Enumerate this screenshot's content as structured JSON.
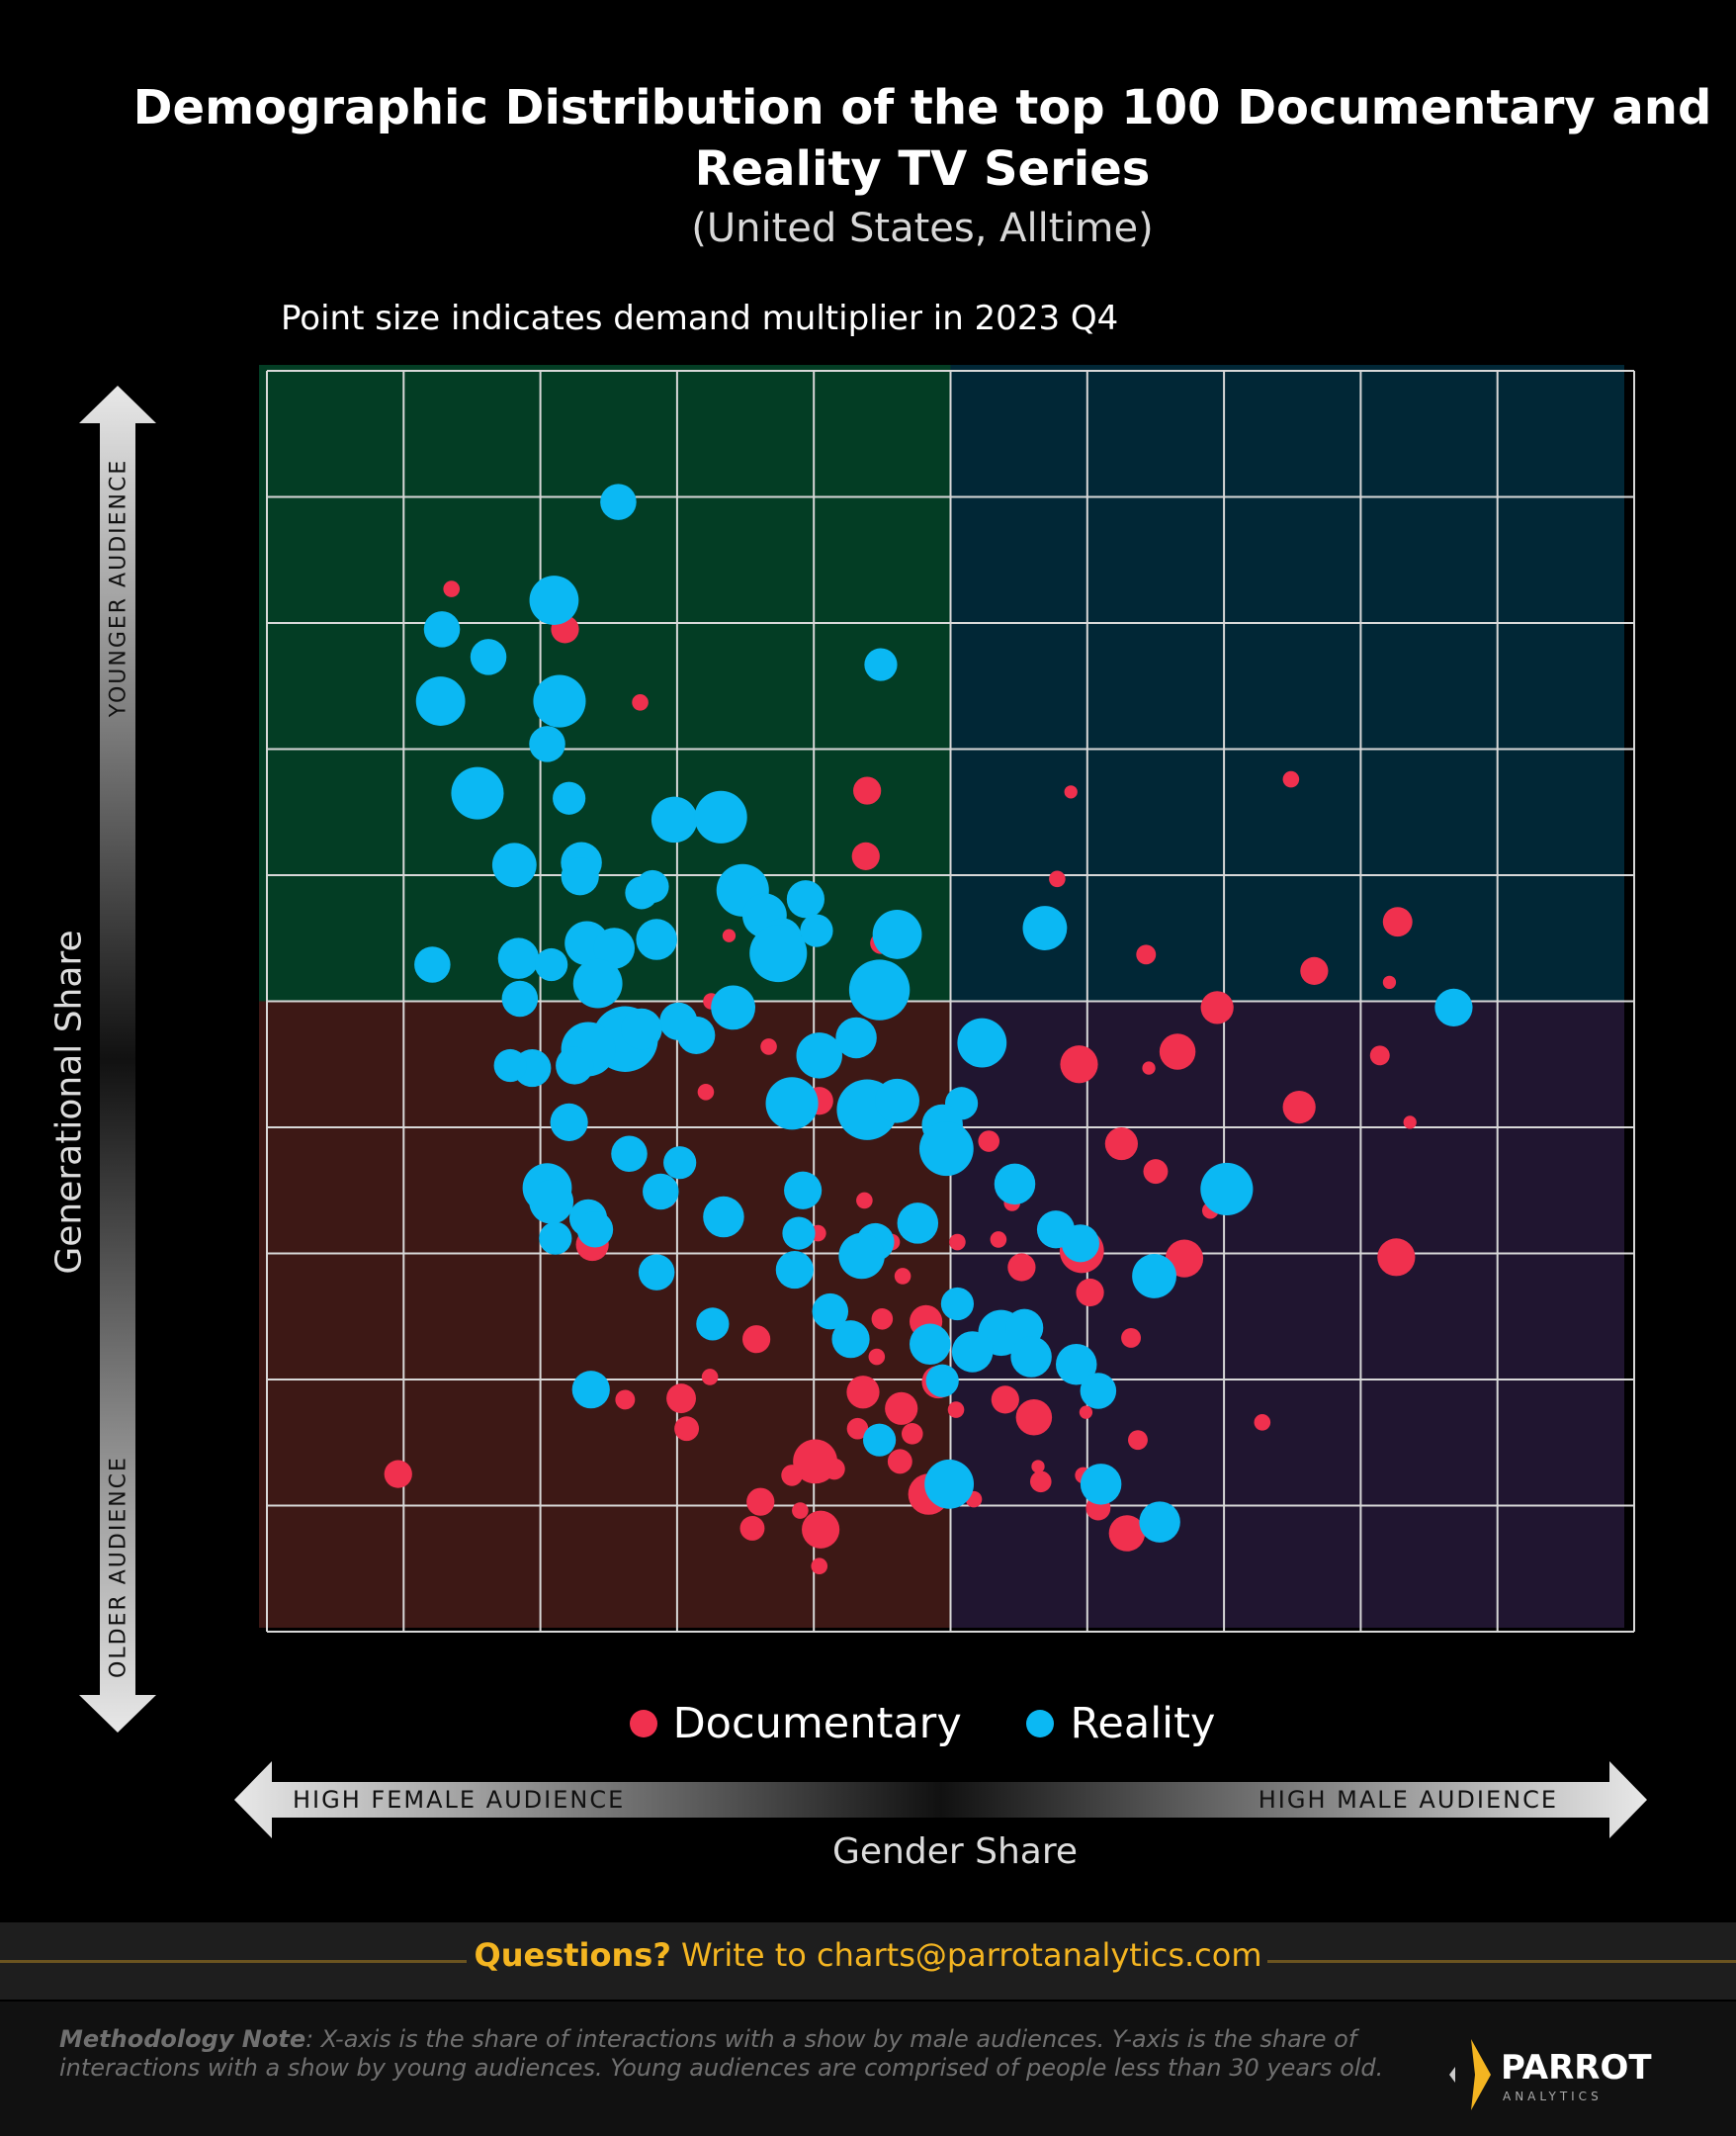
{
  "title_line1": "Demographic Distribution of the top 100 Documentary and",
  "title_line2": "Reality TV Series",
  "subtitle": "(United States, Alltime)",
  "size_note": "Point size indicates demand multiplier in 2023 Q4",
  "footer": {
    "question_label": "Questions?",
    "question_text": " Write to charts@parrotanalytics.com",
    "methodology_label": "Methodology Note",
    "methodology_text": ": X-axis is the share of interactions with a show by male audiences. Y-axis is the share of interactions with a show by young audiences. Young audiences are comprised of people less than 30 years old.",
    "logo_name": "PARROT",
    "logo_sub": "ANALYTICS"
  },
  "chart_data": {
    "type": "scatter",
    "title": "Demographic Distribution of the top 100 Documentary and Reality TV Series",
    "xlabel": "Gender Share",
    "ylabel": "Generational Share",
    "x_low_label": "HIGH FEMALE AUDIENCE",
    "x_high_label": "HIGH MALE AUDIENCE",
    "y_high_label": "YOUNGER AUDIENCE",
    "y_low_label": "OLDER AUDIENCE",
    "xlim": [
      0,
      100
    ],
    "ylim": [
      0,
      100
    ],
    "grid": true,
    "quadrant_split": [
      50,
      50
    ],
    "quadrant_colors": {
      "top_left": "#033d24",
      "top_right": "#012736",
      "bottom_left": "#3d1815",
      "bottom_right": "#201530"
    },
    "legend_position": "bottom",
    "size_meaning": "demand multiplier in 2023 Q4 (relative)",
    "series": [
      {
        "name": "Documentary",
        "color": "#f0304e",
        "points": [
          [
            13.5,
            82.7,
            1
          ],
          [
            21.8,
            79.5,
            1.7
          ],
          [
            27.3,
            73.7,
            1
          ],
          [
            43.9,
            66.7,
            1.7
          ],
          [
            43.8,
            61.5,
            1.7
          ],
          [
            58.8,
            66.6,
            0.8
          ],
          [
            57.8,
            59.7,
            1
          ],
          [
            74.9,
            67.6,
            1
          ],
          [
            82.7,
            56.3,
            1.8
          ],
          [
            64.3,
            53.7,
            1.2
          ],
          [
            76.6,
            52.4,
            1.7
          ],
          [
            82.1,
            51.5,
            0.8
          ],
          [
            33.8,
            55.2,
            0.8
          ],
          [
            44.9,
            54.6,
            1.3
          ],
          [
            69.5,
            49.5,
            2
          ],
          [
            66.6,
            46,
            2.2
          ],
          [
            59.4,
            45,
            2.3
          ],
          [
            64.5,
            44.7,
            0.8
          ],
          [
            81.4,
            45.7,
            1.2
          ],
          [
            75.5,
            41.6,
            2
          ],
          [
            83.6,
            40.4,
            0.8
          ],
          [
            36.7,
            46.4,
            1
          ],
          [
            32.5,
            50,
            1
          ],
          [
            32.1,
            42.8,
            1
          ],
          [
            40.4,
            42.1,
            1.7
          ],
          [
            52.8,
            38.9,
            1.3
          ],
          [
            62.5,
            38.7,
            2
          ],
          [
            65,
            36.5,
            1.5
          ],
          [
            54.5,
            34,
            1
          ],
          [
            69,
            33.4,
            1
          ],
          [
            43.7,
            34.2,
            1
          ],
          [
            40.3,
            31.6,
            1
          ],
          [
            45.7,
            30.9,
            1
          ],
          [
            50.5,
            30.9,
            1
          ],
          [
            53.5,
            31.1,
            1
          ],
          [
            67.1,
            29.6,
            2.3
          ],
          [
            59.6,
            30.2,
            2.7
          ],
          [
            82.6,
            29.7,
            2.3
          ],
          [
            55.2,
            28.9,
            1.7
          ],
          [
            23.8,
            30.7,
            2
          ],
          [
            29.3,
            34.3,
            1
          ],
          [
            46.5,
            28.2,
            1
          ],
          [
            60.2,
            26.9,
            1.7
          ],
          [
            35.8,
            23.2,
            1.7
          ],
          [
            45,
            24.8,
            1.3
          ],
          [
            48.2,
            24.6,
            2
          ],
          [
            63.2,
            23.3,
            1.2
          ],
          [
            44.6,
            21.8,
            1
          ],
          [
            32.4,
            20.2,
            1
          ],
          [
            30.3,
            18.5,
            1.8
          ],
          [
            26.2,
            18.4,
            1.2
          ],
          [
            30.7,
            16.1,
            1.5
          ],
          [
            43.6,
            19,
            2
          ],
          [
            46.4,
            17.7,
            2
          ],
          [
            49.1,
            19.8,
            2
          ],
          [
            54,
            18.4,
            1.7
          ],
          [
            56.1,
            17,
            2.2
          ],
          [
            50.4,
            17.6,
            1
          ],
          [
            59.9,
            17.4,
            0.8
          ],
          [
            63.7,
            15.2,
            1.2
          ],
          [
            72.8,
            16.6,
            1
          ],
          [
            43.2,
            16.1,
            1.3
          ],
          [
            47.2,
            15.7,
            1.3
          ],
          [
            46.3,
            13.5,
            1.5
          ],
          [
            38.4,
            12.4,
            1.3
          ],
          [
            40.1,
            13.5,
            2.7
          ],
          [
            41.5,
            12.9,
            1.3
          ],
          [
            56.6,
            11.9,
            1.3
          ],
          [
            56.4,
            13.1,
            0.8
          ],
          [
            59.7,
            12.4,
            1
          ],
          [
            60.8,
            9.8,
            1.5
          ],
          [
            9.6,
            12.5,
            1.7
          ],
          [
            48.4,
            10.9,
            2.5
          ],
          [
            51.7,
            10.5,
            1
          ],
          [
            36.1,
            10.3,
            1.7
          ],
          [
            39,
            9.6,
            1
          ],
          [
            35.5,
            8.2,
            1.5
          ],
          [
            40.5,
            8.1,
            2.3
          ],
          [
            62.9,
            7.8,
            2.2
          ],
          [
            40.4,
            5.2,
            1
          ]
        ]
      },
      {
        "name": "Reality",
        "color": "#0bb8f3",
        "points": [
          [
            25.7,
            89.6,
            2.2
          ],
          [
            21,
            81.8,
            3
          ],
          [
            12.8,
            79.5,
            2.2
          ],
          [
            16.2,
            77.3,
            2.2
          ],
          [
            44.9,
            76.7,
            2
          ],
          [
            12.7,
            73.8,
            3
          ],
          [
            21.4,
            73.8,
            3.2
          ],
          [
            20.5,
            70.4,
            2.2
          ],
          [
            15.4,
            66.5,
            3.2
          ],
          [
            22.1,
            66.1,
            2
          ],
          [
            29.8,
            64.4,
            2.8
          ],
          [
            33.2,
            64.6,
            3.2
          ],
          [
            18.1,
            60.8,
            2.7
          ],
          [
            23,
            61,
            2.5
          ],
          [
            22.9,
            59.9,
            2.3
          ],
          [
            27.4,
            58.6,
            2
          ],
          [
            28.2,
            59.1,
            2
          ],
          [
            34.8,
            58.8,
            3.2
          ],
          [
            39.4,
            58.1,
            2.3
          ],
          [
            36.4,
            56.8,
            2.7
          ],
          [
            37.7,
            55.1,
            2.3
          ],
          [
            40.2,
            55.6,
            2
          ],
          [
            37.4,
            53.8,
            3.5
          ],
          [
            46.1,
            55.3,
            3
          ],
          [
            12.1,
            52.9,
            2.2
          ],
          [
            18.4,
            53.4,
            2.5
          ],
          [
            20.8,
            52.9,
            2
          ],
          [
            23.4,
            54.6,
            2.7
          ],
          [
            25.4,
            54.2,
            2.5
          ],
          [
            28.5,
            54.9,
            2.5
          ],
          [
            24.2,
            51.4,
            3
          ],
          [
            44.8,
            50.9,
            3.7
          ],
          [
            18.5,
            50.2,
            2.2
          ],
          [
            34.1,
            49.5,
            2.7
          ],
          [
            30.1,
            48.4,
            2.3
          ],
          [
            31.4,
            47.3,
            2.3
          ],
          [
            26.2,
            47,
            4
          ],
          [
            23.5,
            46.2,
            3.3
          ],
          [
            22.5,
            44.9,
            2.3
          ],
          [
            19.4,
            44.7,
            2.3
          ],
          [
            17.8,
            44.9,
            2
          ],
          [
            27.4,
            47.8,
            2.5
          ],
          [
            40.4,
            45.7,
            2.8
          ],
          [
            43.1,
            47.1,
            2.5
          ],
          [
            52.3,
            46.7,
            3
          ],
          [
            38.4,
            41.9,
            3.2
          ],
          [
            43.9,
            41.4,
            3.7
          ],
          [
            46.1,
            42.1,
            2.7
          ],
          [
            50.8,
            41.9,
            2
          ],
          [
            49.4,
            40.2,
            2.5
          ],
          [
            49.7,
            38.3,
            3.3
          ],
          [
            22.1,
            40.4,
            2.3
          ],
          [
            26.5,
            37.9,
            2.2
          ],
          [
            30.2,
            37.2,
            2
          ],
          [
            20.5,
            35.2,
            3
          ],
          [
            20.8,
            34.1,
            2.7
          ],
          [
            28.8,
            34.9,
            2.2
          ],
          [
            39.2,
            35,
            2.3
          ],
          [
            54.7,
            35.5,
            2.5
          ],
          [
            70.2,
            35.1,
            3.2
          ],
          [
            33.4,
            32.9,
            2.5
          ],
          [
            23.5,
            32.8,
            2.3
          ],
          [
            24,
            31.9,
            2.2
          ],
          [
            47.6,
            32.4,
            2.5
          ],
          [
            21.1,
            31.2,
            2
          ],
          [
            38.9,
            31.6,
            2
          ],
          [
            44.5,
            30.9,
            2.3
          ],
          [
            43.5,
            29.8,
            2.8
          ],
          [
            57.7,
            31.9,
            2.3
          ],
          [
            59.5,
            30.8,
            2.3
          ],
          [
            28.5,
            28.5,
            2.2
          ],
          [
            38.6,
            28.7,
            2.3
          ],
          [
            64.9,
            28.2,
            2.7
          ],
          [
            50.5,
            26,
            2
          ],
          [
            41.2,
            25.4,
            2.2
          ],
          [
            32.6,
            24.4,
            2
          ],
          [
            42.7,
            23.2,
            2.3
          ],
          [
            48.5,
            22.8,
            2.5
          ],
          [
            53.7,
            23.7,
            2.8
          ],
          [
            55.4,
            24.1,
            2.3
          ],
          [
            51.6,
            22.2,
            2.5
          ],
          [
            55.9,
            21.8,
            2.5
          ],
          [
            59.2,
            21.2,
            2.5
          ],
          [
            49.4,
            19.9,
            2
          ],
          [
            60.8,
            19.1,
            2.2
          ],
          [
            23.7,
            19.2,
            2.3
          ],
          [
            44.8,
            15.2,
            2
          ],
          [
            49.9,
            11.7,
            3
          ],
          [
            61,
            11.7,
            2.5
          ],
          [
            65.3,
            8.7,
            2.5
          ],
          [
            86.8,
            49.5,
            2.3
          ],
          [
            56.9,
            55.8,
            2.7
          ]
        ]
      }
    ]
  }
}
